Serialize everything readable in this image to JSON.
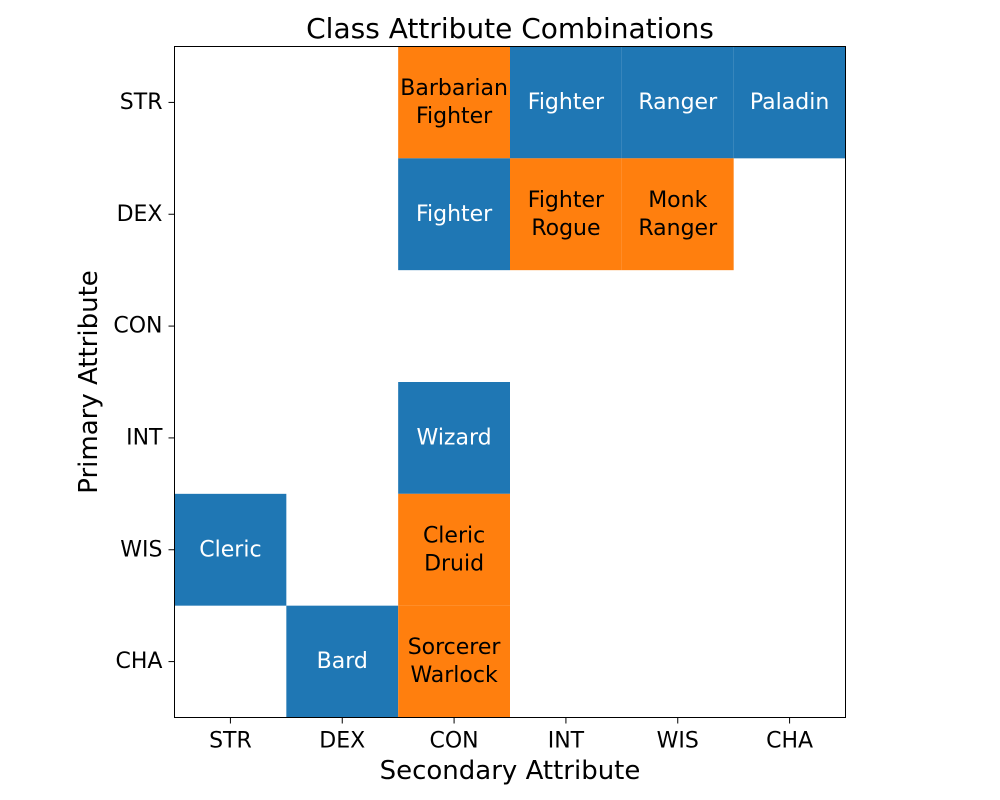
{
  "chart_data": {
    "type": "heatmap",
    "title": "Class Attribute Combinations",
    "xlabel": "Secondary Attribute",
    "ylabel": "Primary Attribute",
    "x_categories": [
      "STR",
      "DEX",
      "CON",
      "INT",
      "WIS",
      "CHA"
    ],
    "y_categories": [
      "STR",
      "DEX",
      "CON",
      "INT",
      "WIS",
      "CHA"
    ],
    "colors": {
      "single": "#1f77b4",
      "multiple": "#ff7f0e",
      "text_single": "#ffffff",
      "text_multiple": "#000000"
    },
    "cells": [
      {
        "primary": "STR",
        "secondary": "CON",
        "classes": [
          "Barbarian",
          "Fighter"
        ]
      },
      {
        "primary": "STR",
        "secondary": "INT",
        "classes": [
          "Fighter"
        ]
      },
      {
        "primary": "STR",
        "secondary": "WIS",
        "classes": [
          "Ranger"
        ]
      },
      {
        "primary": "STR",
        "secondary": "CHA",
        "classes": [
          "Paladin"
        ]
      },
      {
        "primary": "DEX",
        "secondary": "CON",
        "classes": [
          "Fighter"
        ]
      },
      {
        "primary": "DEX",
        "secondary": "INT",
        "classes": [
          "Fighter",
          "Rogue"
        ]
      },
      {
        "primary": "DEX",
        "secondary": "WIS",
        "classes": [
          "Monk",
          "Ranger"
        ]
      },
      {
        "primary": "INT",
        "secondary": "CON",
        "classes": [
          "Wizard"
        ]
      },
      {
        "primary": "WIS",
        "secondary": "STR",
        "classes": [
          "Cleric"
        ]
      },
      {
        "primary": "WIS",
        "secondary": "CON",
        "classes": [
          "Cleric",
          "Druid"
        ]
      },
      {
        "primary": "CHA",
        "secondary": "DEX",
        "classes": [
          "Bard"
        ]
      },
      {
        "primary": "CHA",
        "secondary": "CON",
        "classes": [
          "Sorcerer",
          "Warlock"
        ]
      }
    ]
  }
}
